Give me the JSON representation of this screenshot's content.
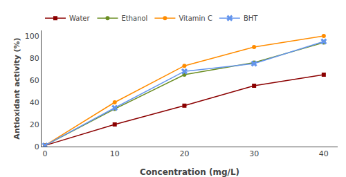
{
  "chart_data": {
    "type": "line",
    "x": [
      0,
      10,
      20,
      30,
      40
    ],
    "series": [
      {
        "name": "Water",
        "color": "#8B0000",
        "marker": "square",
        "values": [
          1,
          20,
          37,
          55,
          65
        ]
      },
      {
        "name": "Ethanol",
        "color": "#6B8E23",
        "marker": "circle",
        "values": [
          1,
          34,
          65,
          76,
          94
        ]
      },
      {
        "name": "Vitamin C",
        "color": "#FF8C00",
        "marker": "circle",
        "values": [
          1,
          40,
          73,
          90,
          100
        ]
      },
      {
        "name": "BHT",
        "color": "#6495ED",
        "marker": "x",
        "values": [
          1,
          35,
          68,
          75,
          95
        ]
      }
    ],
    "xlabel": "Concentration (mg/L)",
    "ylabel": "Antioxidant activity (%)",
    "xlim": [
      -0.5,
      42
    ],
    "ylim": [
      0,
      105
    ],
    "xticks": [
      0,
      10,
      20,
      30,
      40
    ],
    "yticks": [
      0,
      20,
      40,
      60,
      80,
      100
    ],
    "grid": false,
    "legend": "upper left"
  }
}
